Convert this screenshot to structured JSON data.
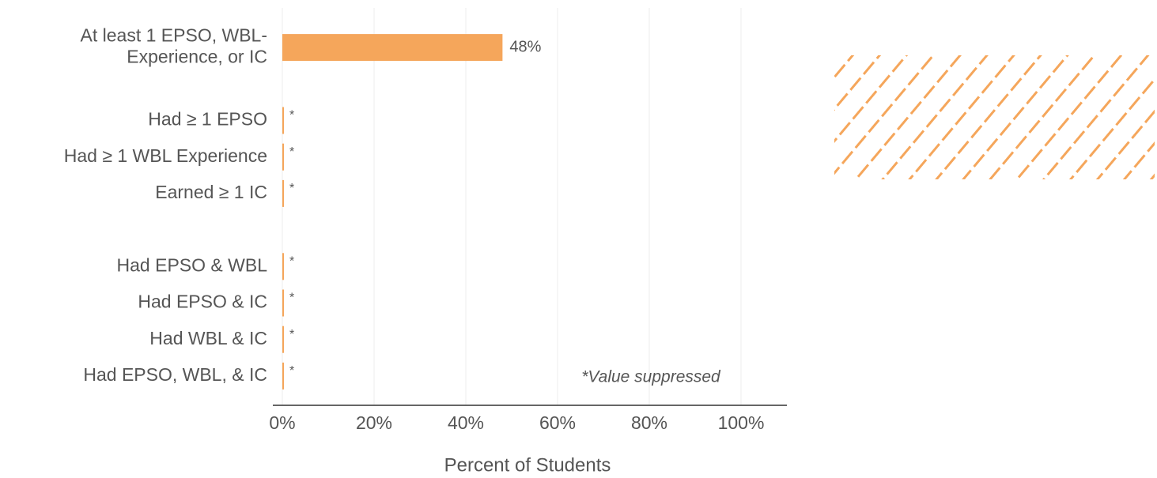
{
  "chart_data": {
    "type": "hbar",
    "categories": [
      "At least 1 EPSO, WBL-\nExperience, or IC",
      null,
      "Had ≥ 1 EPSO",
      "Had ≥ 1 WBL Experience",
      "Earned ≥ 1 IC",
      null,
      "Had EPSO & WBL",
      "Had EPSO & IC",
      "Had WBL & IC",
      "Had EPSO, WBL, & IC"
    ],
    "values": [
      48,
      null,
      null,
      null,
      null,
      null,
      null,
      null,
      null,
      null
    ],
    "value_labels": [
      "48%",
      null,
      "*",
      "*",
      "*",
      null,
      "*",
      "*",
      "*",
      "*"
    ],
    "color": "#f5a65b",
    "xlim": [
      0,
      110
    ],
    "xticks": [
      {
        "value": 0,
        "label": "0%"
      },
      {
        "value": 20,
        "label": "20%"
      },
      {
        "value": 40,
        "label": "40%"
      },
      {
        "value": 60,
        "label": "60%"
      },
      {
        "value": 80,
        "label": "80%"
      },
      {
        "value": 100,
        "label": "100%"
      }
    ],
    "grid": true,
    "x_label": "Percent of Students",
    "annotation": "*Value suppressed"
  }
}
